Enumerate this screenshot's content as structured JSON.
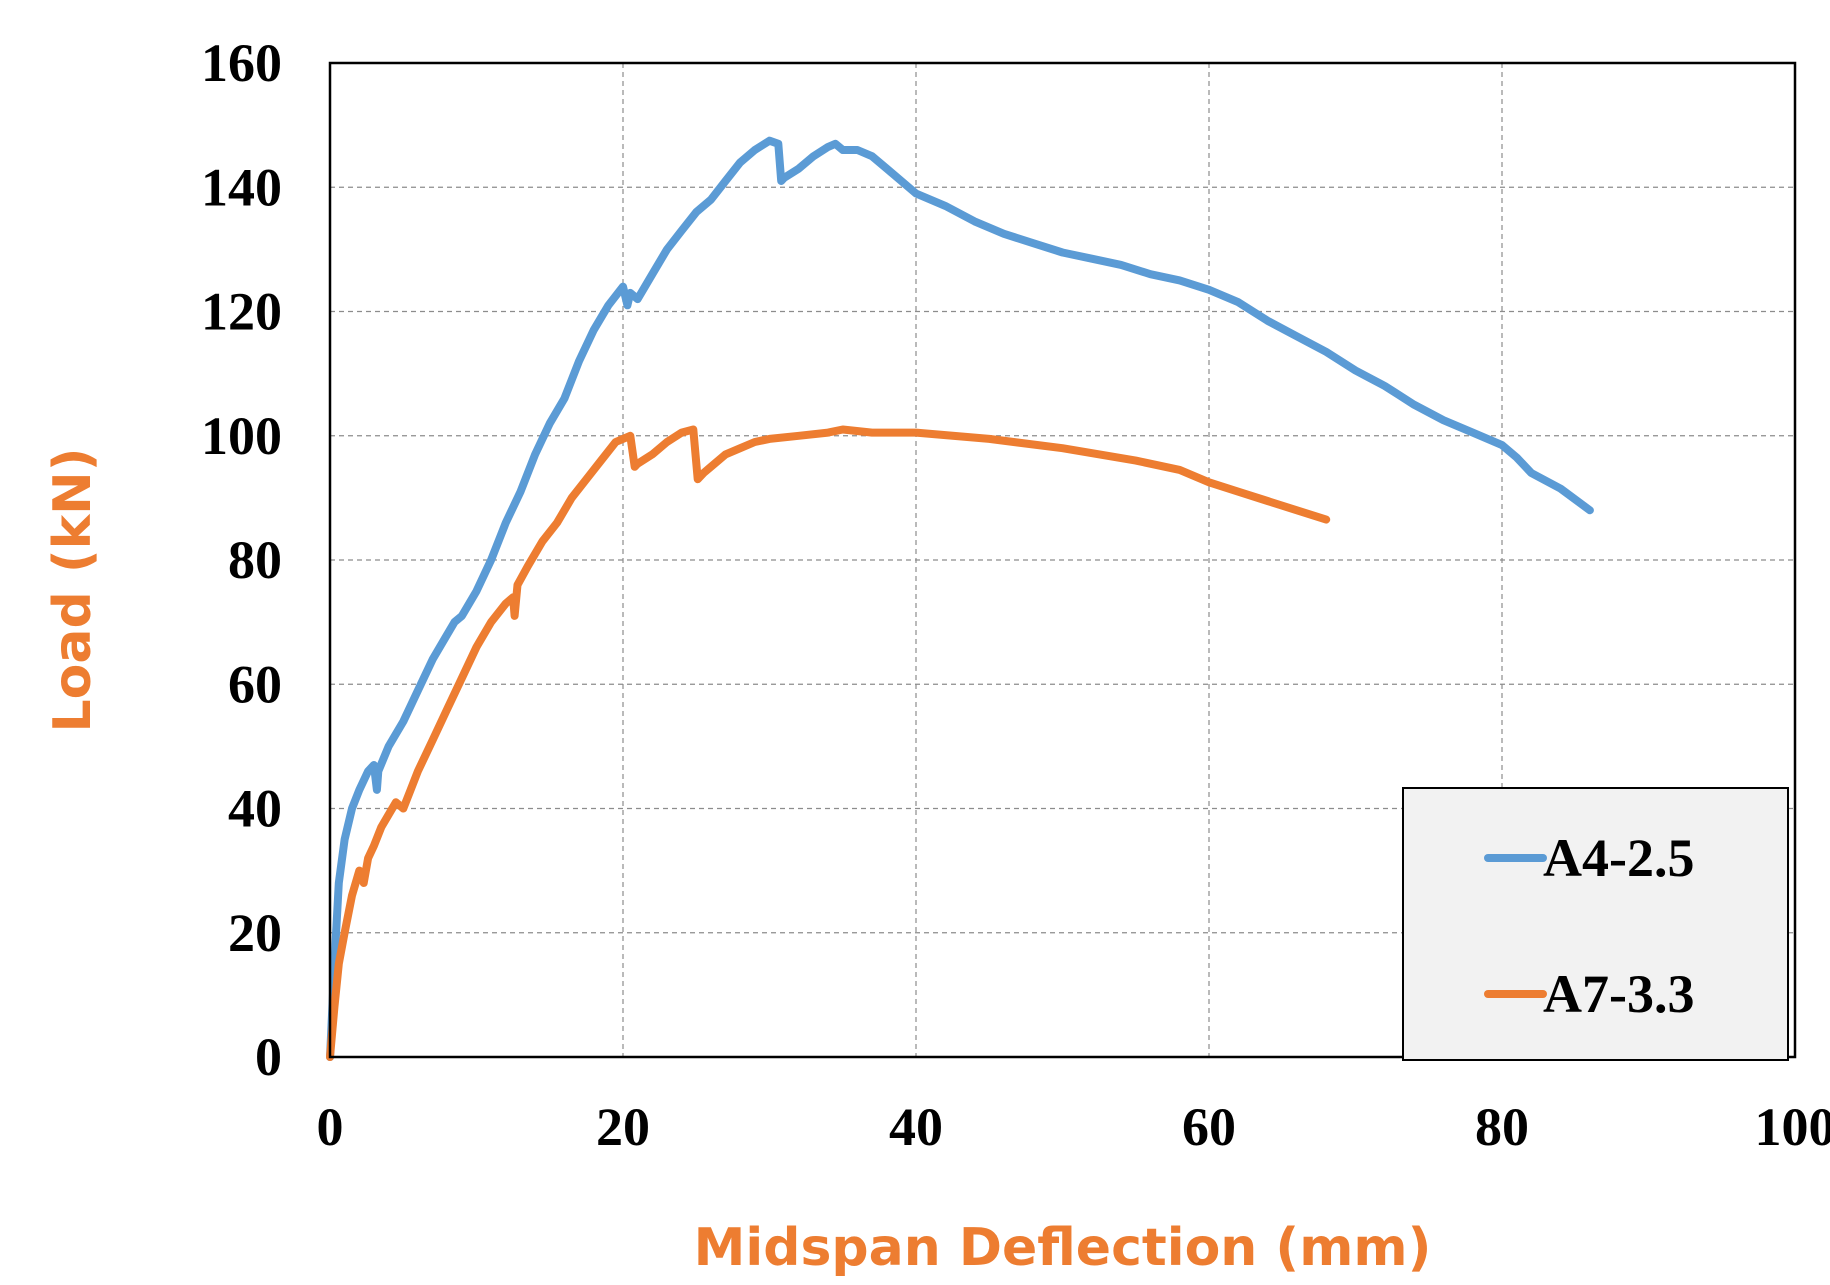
{
  "colors": {
    "axis_title": "#ED7D31",
    "grid": "#8C8C8C",
    "plot_border": "#000000",
    "legend_background": "#F2F2F2"
  },
  "chart_data": {
    "type": "line",
    "xlabel": "Midspan Deflection (mm)",
    "ylabel": "Load (kN)",
    "xlim": [
      0,
      100
    ],
    "ylim": [
      0,
      160
    ],
    "xticks": [
      0,
      20,
      40,
      60,
      80,
      100
    ],
    "yticks": [
      0,
      20,
      40,
      60,
      80,
      100,
      120,
      140,
      160
    ],
    "grid": true,
    "legend_position": "bottom-right",
    "series": [
      {
        "name": "A4-2.5",
        "color": "#5B9BD5",
        "x": [
          0,
          0.3,
          0.6,
          1.0,
          1.5,
          2.0,
          2.6,
          3.0,
          3.2,
          3.3,
          4.0,
          4.5,
          5.0,
          6.0,
          7.0,
          8.0,
          8.5,
          9.0,
          10.0,
          11.0,
          12.0,
          13.0,
          14.0,
          15.0,
          16.0,
          17.0,
          18.0,
          19.0,
          20.0,
          20.3,
          20.5,
          21.0,
          22.0,
          23.0,
          24.0,
          25.0,
          26.0,
          27.0,
          28.0,
          29.0,
          30.0,
          30.6,
          30.8,
          31.0,
          32.0,
          33.0,
          34.0,
          34.5,
          35.0,
          36.0,
          37.0,
          38.0,
          40.0,
          42.0,
          44.0,
          46.0,
          48.0,
          50.0,
          52.0,
          54.0,
          56.0,
          58.0,
          60.0,
          62.0,
          64.0,
          66.0,
          68.0,
          70.0,
          72.0,
          74.0,
          76.0,
          78.0,
          80.0,
          81.0,
          82.0,
          84.0,
          86.0
        ],
        "y": [
          0,
          15,
          28,
          35,
          40,
          43,
          46,
          47,
          43,
          46,
          50,
          52,
          54,
          59,
          64,
          68,
          70,
          71,
          75,
          80,
          86,
          91,
          97,
          102,
          106,
          112,
          117,
          121,
          124,
          121,
          123,
          122,
          126,
          130,
          133,
          136,
          138,
          141,
          144,
          146,
          147.5,
          147,
          141,
          141.5,
          143,
          145,
          146.5,
          147,
          146,
          146,
          145,
          143,
          139,
          137,
          134.5,
          132.5,
          131,
          129.5,
          128.5,
          127.5,
          126,
          125,
          123.5,
          121.5,
          118.5,
          116,
          113.5,
          110.5,
          108,
          105,
          102.5,
          100.5,
          98.5,
          96.5,
          94,
          91.5,
          88
        ]
      },
      {
        "name": "A7-3.3",
        "color": "#ED7D31",
        "x": [
          0,
          0.3,
          0.6,
          1.0,
          1.5,
          2.0,
          2.3,
          2.6,
          3.0,
          3.5,
          4.0,
          4.5,
          5.0,
          5.5,
          6.0,
          7.0,
          8.0,
          9.0,
          10.0,
          11.0,
          12.0,
          12.5,
          12.6,
          12.8,
          13.5,
          14.5,
          15.5,
          16.5,
          17.5,
          18.5,
          19.5,
          20.5,
          20.8,
          21.0,
          22.0,
          23.0,
          24.0,
          24.8,
          25.1,
          25.5,
          26.0,
          27.0,
          28.0,
          29.0,
          30.0,
          32.0,
          34.0,
          35.0,
          37.0,
          40.0,
          45.0,
          50.0,
          55.0,
          58.0,
          60.0,
          62.0,
          64.0,
          66.0,
          68.0
        ],
        "y": [
          0,
          8,
          15,
          20,
          26,
          30,
          28,
          32,
          34,
          37,
          39,
          41,
          40,
          43,
          46,
          51,
          56,
          61,
          66,
          70,
          73,
          74,
          71,
          76,
          79,
          83,
          86,
          90,
          93,
          96,
          99,
          100,
          95,
          95.5,
          97,
          99,
          100.5,
          101,
          93,
          94,
          95,
          97,
          98,
          99,
          99.5,
          100,
          100.5,
          101,
          100.5,
          100.5,
          99.5,
          98,
          96,
          94.5,
          92.5,
          91,
          89.5,
          88,
          86.5
        ]
      }
    ]
  }
}
